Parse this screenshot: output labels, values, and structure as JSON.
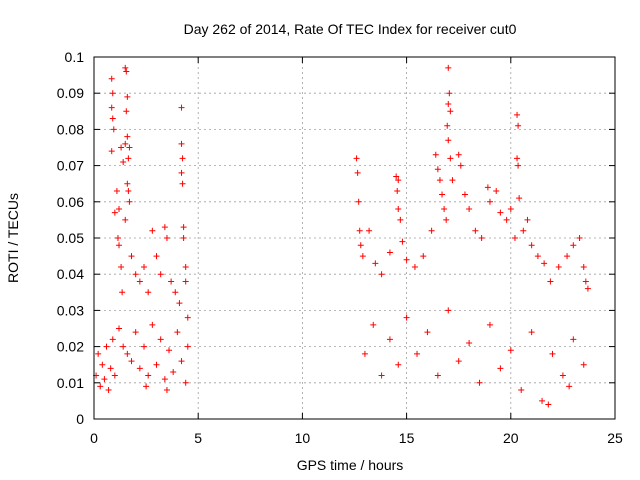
{
  "chart_data": {
    "type": "scatter",
    "title": "Day 262 of 2014, Rate Of TEC Index for receiver cut0",
    "xlabel": "GPS time / hours",
    "ylabel": "ROTI / TECUs",
    "xlim": [
      0,
      25
    ],
    "ylim": [
      0,
      0.1
    ],
    "xticks": [
      0,
      5,
      10,
      15,
      20,
      25
    ],
    "xtick_labels": [
      "0",
      "5",
      "10",
      "15",
      "20",
      "25"
    ],
    "yticks": [
      0,
      0.01,
      0.02,
      0.03,
      0.04,
      0.05,
      0.06,
      0.07,
      0.08,
      0.09,
      0.1
    ],
    "ytick_labels": [
      "0",
      "0.01",
      "0.02",
      "0.03",
      "0.04",
      "0.05",
      "0.06",
      "0.07",
      "0.08",
      "0.09",
      "0.1"
    ],
    "grid": true,
    "marker": "+",
    "series_color": "#ff0000",
    "series": [
      {
        "name": "ROTI",
        "points": [
          [
            0.1,
            0.012
          ],
          [
            0.2,
            0.018
          ],
          [
            0.3,
            0.009
          ],
          [
            0.4,
            0.015
          ],
          [
            0.5,
            0.011
          ],
          [
            0.6,
            0.02
          ],
          [
            0.7,
            0.008
          ],
          [
            0.8,
            0.014
          ],
          [
            0.9,
            0.022
          ],
          [
            1.0,
            0.012
          ],
          [
            0.85,
            0.094
          ],
          [
            0.9,
            0.09
          ],
          [
            0.85,
            0.086
          ],
          [
            0.9,
            0.083
          ],
          [
            0.95,
            0.08
          ],
          [
            0.85,
            0.074
          ],
          [
            1.1,
            0.063
          ],
          [
            1.2,
            0.058
          ],
          [
            1.0,
            0.057
          ],
          [
            1.15,
            0.05
          ],
          [
            1.3,
            0.042
          ],
          [
            1.35,
            0.035
          ],
          [
            1.5,
            0.097
          ],
          [
            1.55,
            0.096
          ],
          [
            1.6,
            0.089
          ],
          [
            1.55,
            0.085
          ],
          [
            1.6,
            0.078
          ],
          [
            1.5,
            0.076
          ],
          [
            1.7,
            0.075
          ],
          [
            1.65,
            0.072
          ],
          [
            1.3,
            0.075
          ],
          [
            1.4,
            0.071
          ],
          [
            1.6,
            0.065
          ],
          [
            1.65,
            0.063
          ],
          [
            1.7,
            0.06
          ],
          [
            1.5,
            0.055
          ],
          [
            1.2,
            0.048
          ],
          [
            1.8,
            0.045
          ],
          [
            2.0,
            0.04
          ],
          [
            2.2,
            0.038
          ],
          [
            2.4,
            0.042
          ],
          [
            2.6,
            0.035
          ],
          [
            2.8,
            0.052
          ],
          [
            3.0,
            0.045
          ],
          [
            3.2,
            0.04
          ],
          [
            3.4,
            0.053
          ],
          [
            3.5,
            0.05
          ],
          [
            3.7,
            0.038
          ],
          [
            3.9,
            0.035
          ],
          [
            4.1,
            0.032
          ],
          [
            4.2,
            0.086
          ],
          [
            4.2,
            0.076
          ],
          [
            4.25,
            0.072
          ],
          [
            4.2,
            0.068
          ],
          [
            4.25,
            0.065
          ],
          [
            4.3,
            0.053
          ],
          [
            4.3,
            0.05
          ],
          [
            4.4,
            0.042
          ],
          [
            4.4,
            0.038
          ],
          [
            4.5,
            0.028
          ],
          [
            1.2,
            0.025
          ],
          [
            1.4,
            0.02
          ],
          [
            1.6,
            0.018
          ],
          [
            1.8,
            0.016
          ],
          [
            2.0,
            0.024
          ],
          [
            2.2,
            0.014
          ],
          [
            2.4,
            0.02
          ],
          [
            2.6,
            0.012
          ],
          [
            2.8,
            0.026
          ],
          [
            3.0,
            0.015
          ],
          [
            3.2,
            0.022
          ],
          [
            3.4,
            0.011
          ],
          [
            3.6,
            0.019
          ],
          [
            3.8,
            0.013
          ],
          [
            4.0,
            0.024
          ],
          [
            4.2,
            0.016
          ],
          [
            4.4,
            0.01
          ],
          [
            4.5,
            0.02
          ],
          [
            2.5,
            0.009
          ],
          [
            3.5,
            0.008
          ],
          [
            12.6,
            0.072
          ],
          [
            12.65,
            0.068
          ],
          [
            12.7,
            0.06
          ],
          [
            12.75,
            0.052
          ],
          [
            12.8,
            0.048
          ],
          [
            12.9,
            0.045
          ],
          [
            13.2,
            0.052
          ],
          [
            13.5,
            0.043
          ],
          [
            13.8,
            0.04
          ],
          [
            14.2,
            0.046
          ],
          [
            14.5,
            0.067
          ],
          [
            14.6,
            0.066
          ],
          [
            14.55,
            0.063
          ],
          [
            14.6,
            0.058
          ],
          [
            14.7,
            0.055
          ],
          [
            14.8,
            0.049
          ],
          [
            15.0,
            0.044
          ],
          [
            15.4,
            0.042
          ],
          [
            15.8,
            0.045
          ],
          [
            16.2,
            0.052
          ],
          [
            16.4,
            0.073
          ],
          [
            16.5,
            0.069
          ],
          [
            16.6,
            0.066
          ],
          [
            16.7,
            0.062
          ],
          [
            16.8,
            0.058
          ],
          [
            16.9,
            0.055
          ],
          [
            17.0,
            0.097
          ],
          [
            17.05,
            0.09
          ],
          [
            17.0,
            0.087
          ],
          [
            17.1,
            0.085
          ],
          [
            16.95,
            0.081
          ],
          [
            17.0,
            0.077
          ],
          [
            17.1,
            0.072
          ],
          [
            17.2,
            0.066
          ],
          [
            17.5,
            0.073
          ],
          [
            17.6,
            0.07
          ],
          [
            17.8,
            0.062
          ],
          [
            18.0,
            0.058
          ],
          [
            18.3,
            0.052
          ],
          [
            18.6,
            0.05
          ],
          [
            18.9,
            0.064
          ],
          [
            19.0,
            0.06
          ],
          [
            19.3,
            0.063
          ],
          [
            19.5,
            0.057
          ],
          [
            19.8,
            0.055
          ],
          [
            20.0,
            0.058
          ],
          [
            20.2,
            0.05
          ],
          [
            20.3,
            0.084
          ],
          [
            20.35,
            0.081
          ],
          [
            20.3,
            0.072
          ],
          [
            20.35,
            0.07
          ],
          [
            20.4,
            0.061
          ],
          [
            20.6,
            0.052
          ],
          [
            20.8,
            0.055
          ],
          [
            21.0,
            0.048
          ],
          [
            21.3,
            0.045
          ],
          [
            21.6,
            0.043
          ],
          [
            21.9,
            0.038
          ],
          [
            22.3,
            0.042
          ],
          [
            22.7,
            0.045
          ],
          [
            23.0,
            0.048
          ],
          [
            23.3,
            0.05
          ],
          [
            23.5,
            0.042
          ],
          [
            23.6,
            0.038
          ],
          [
            23.7,
            0.036
          ],
          [
            13.0,
            0.018
          ],
          [
            13.4,
            0.026
          ],
          [
            13.8,
            0.012
          ],
          [
            14.2,
            0.022
          ],
          [
            14.6,
            0.015
          ],
          [
            15.0,
            0.028
          ],
          [
            15.5,
            0.018
          ],
          [
            16.0,
            0.024
          ],
          [
            16.5,
            0.012
          ],
          [
            17.0,
            0.03
          ],
          [
            17.5,
            0.016
          ],
          [
            18.0,
            0.021
          ],
          [
            18.5,
            0.01
          ],
          [
            19.0,
            0.026
          ],
          [
            19.5,
            0.014
          ],
          [
            20.0,
            0.019
          ],
          [
            20.5,
            0.008
          ],
          [
            21.0,
            0.024
          ],
          [
            21.5,
            0.005
          ],
          [
            22.0,
            0.018
          ],
          [
            22.5,
            0.012
          ],
          [
            23.0,
            0.022
          ],
          [
            23.5,
            0.015
          ],
          [
            21.8,
            0.004
          ],
          [
            22.8,
            0.009
          ]
        ]
      }
    ]
  }
}
